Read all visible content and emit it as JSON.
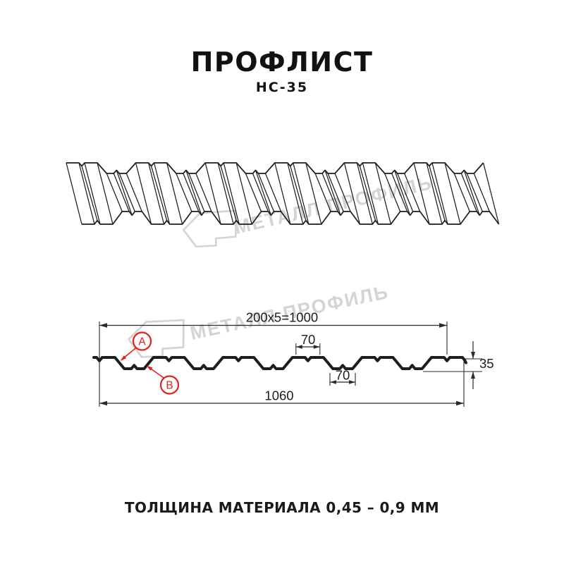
{
  "header": {
    "title": "ПРОФЛИСТ",
    "subtitle": "НС-35"
  },
  "footer": {
    "text": "ТОЛЩИНА МАТЕРИАЛА 0,45 – 0,9 ММ"
  },
  "watermark": {
    "text": "МЕТАЛЛ ПРОФИЛЬ"
  },
  "diagram": {
    "dimensions": {
      "useful_width": "200x5=1000",
      "overall_width": "1060",
      "crest_width": "70",
      "valley_width": "70",
      "profile_height": "35"
    },
    "labels": {
      "a": "А",
      "b": "В"
    }
  },
  "colors": {
    "accent_red": "#e3221c",
    "line_black": "#1d1d1d",
    "dim_gray": "#2a2a2a",
    "watermark_gray": "#d4d4d4",
    "background": "#ffffff"
  }
}
